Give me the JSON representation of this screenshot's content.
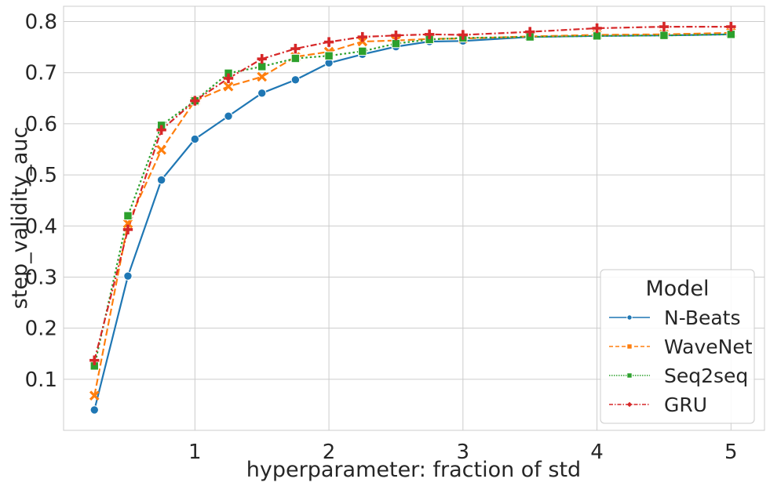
{
  "chart_data": {
    "type": "line",
    "xlabel": "hyperparameter: fraction of std",
    "ylabel": "step_validity_auc",
    "xlim": [
      0.02,
      5.25
    ],
    "ylim": [
      0.0,
      0.83
    ],
    "x_ticks": [
      1,
      2,
      3,
      4,
      5
    ],
    "y_ticks": [
      0.1,
      0.2,
      0.3,
      0.4,
      0.5,
      0.6,
      0.7,
      0.8
    ],
    "grid": true,
    "legend": {
      "title": "Model",
      "position": "bottom-right"
    },
    "series": [
      {
        "name": "N-Beats",
        "color": "#1f77b4",
        "marker": "circle",
        "dash": "solid",
        "x": [
          0.25,
          0.5,
          0.75,
          1.0,
          1.25,
          1.5,
          1.75,
          2.0,
          2.25,
          2.5,
          2.75,
          3.0,
          3.5,
          4.0,
          4.5,
          5.0
        ],
        "y": [
          0.04,
          0.302,
          0.49,
          0.57,
          0.615,
          0.66,
          0.686,
          0.719,
          0.736,
          0.751,
          0.761,
          0.762,
          0.77,
          0.772,
          0.773,
          0.775
        ]
      },
      {
        "name": "WaveNet",
        "color": "#ff7f0e",
        "marker": "x",
        "dash": "dashed",
        "x": [
          0.25,
          0.5,
          0.75,
          1.0,
          1.25,
          1.5,
          1.75,
          2.0,
          2.25,
          2.5,
          2.75,
          3.0,
          3.5,
          4.0,
          4.5,
          5.0
        ],
        "y": [
          0.068,
          0.405,
          0.549,
          0.645,
          0.673,
          0.692,
          0.731,
          0.741,
          0.761,
          0.763,
          0.766,
          0.767,
          0.771,
          0.774,
          0.775,
          0.778
        ]
      },
      {
        "name": "Seq2seq",
        "color": "#2ca02c",
        "marker": "square",
        "dash": "dotted",
        "x": [
          0.25,
          0.5,
          0.75,
          1.0,
          1.25,
          1.5,
          1.75,
          2.0,
          2.25,
          2.5,
          2.75,
          3.0,
          3.5,
          4.0,
          4.5,
          5.0
        ],
        "y": [
          0.126,
          0.42,
          0.597,
          0.645,
          0.699,
          0.712,
          0.728,
          0.733,
          0.742,
          0.757,
          0.765,
          0.768,
          0.77,
          0.772,
          0.773,
          0.775
        ]
      },
      {
        "name": "GRU",
        "color": "#d62728",
        "marker": "plus",
        "dash": "dashdot",
        "x": [
          0.25,
          0.5,
          0.75,
          1.0,
          1.25,
          1.5,
          1.75,
          2.0,
          2.25,
          2.5,
          2.75,
          3.0,
          3.5,
          4.0,
          4.5,
          5.0
        ],
        "y": [
          0.137,
          0.393,
          0.588,
          0.645,
          0.689,
          0.727,
          0.747,
          0.76,
          0.77,
          0.773,
          0.775,
          0.774,
          0.78,
          0.787,
          0.79,
          0.79
        ]
      }
    ]
  }
}
